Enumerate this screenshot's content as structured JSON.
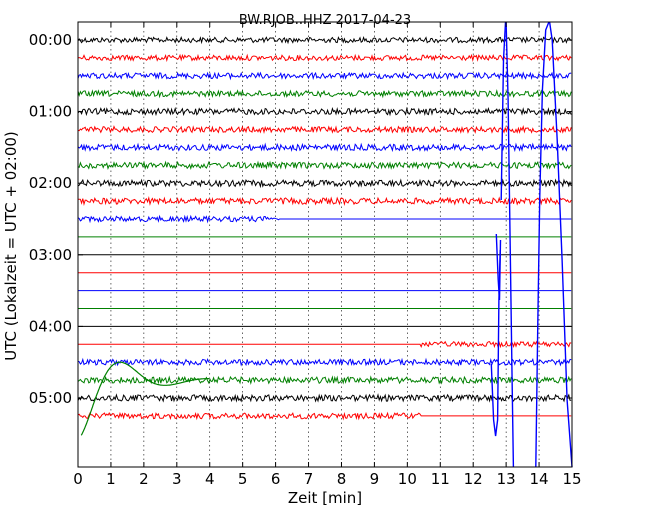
{
  "chart_data": {
    "type": "line",
    "title": "BW.RJOB..HHZ 2017-04-23",
    "xlabel": "Zeit  [min]",
    "ylabel": "UTC (Lokalzeit = UTC + 02:00)",
    "xlim": [
      0,
      15
    ],
    "x_ticks": [
      "0",
      "1",
      "2",
      "3",
      "4",
      "5",
      "6",
      "7",
      "8",
      "9",
      "10",
      "11",
      "12",
      "13",
      "14",
      "15"
    ],
    "y_ticks": [
      "00:00",
      "01:00",
      "02:00",
      "03:00",
      "04:00",
      "05:00"
    ],
    "grid": true,
    "colors": [
      "#000000",
      "#ff0000",
      "#0000ff",
      "#008000"
    ],
    "traces": [
      {
        "row": 0,
        "color": "#000000",
        "noise": 1.2,
        "flat_from": null,
        "flat_to": null
      },
      {
        "row": 1,
        "color": "#ff0000",
        "noise": 1.2,
        "flat_from": null,
        "flat_to": null
      },
      {
        "row": 2,
        "color": "#0000ff",
        "noise": 1.3,
        "flat_from": null,
        "flat_to": null
      },
      {
        "row": 3,
        "color": "#008000",
        "noise": 1.3,
        "flat_from": null,
        "flat_to": null
      },
      {
        "row": 4,
        "color": "#000000",
        "noise": 1.4,
        "flat_from": null,
        "flat_to": null
      },
      {
        "row": 5,
        "color": "#ff0000",
        "noise": 1.3,
        "flat_from": null,
        "flat_to": null
      },
      {
        "row": 6,
        "color": "#0000ff",
        "noise": 1.4,
        "flat_from": null,
        "flat_to": null
      },
      {
        "row": 7,
        "color": "#008000",
        "noise": 1.4,
        "flat_from": null,
        "flat_to": null
      },
      {
        "row": 8,
        "color": "#000000",
        "noise": 1.4,
        "flat_from": null,
        "flat_to": null
      },
      {
        "row": 9,
        "color": "#ff0000",
        "noise": 1.4,
        "flat_from": null,
        "flat_to": null
      },
      {
        "row": 10,
        "color": "#0000ff",
        "noise": 1.2,
        "flat_from": 6.1,
        "flat_to": 15
      },
      {
        "row": 11,
        "color": "#008000",
        "noise": 0.0,
        "flat_from": 0,
        "flat_to": 15
      },
      {
        "row": 12,
        "color": "#000000",
        "noise": 0.0,
        "flat_from": 0,
        "flat_to": 15
      },
      {
        "row": 13,
        "color": "#ff0000",
        "noise": 0.0,
        "flat_from": 0,
        "flat_to": 15
      },
      {
        "row": 14,
        "color": "#0000ff",
        "noise": 0.0,
        "flat_from": 0,
        "flat_to": 15
      },
      {
        "row": 15,
        "color": "#008000",
        "noise": 0.0,
        "flat_from": 0,
        "flat_to": 15
      },
      {
        "row": 16,
        "color": "#000000",
        "noise": 0.0,
        "flat_from": 0,
        "flat_to": 15
      },
      {
        "row": 17,
        "color": "#ff0000",
        "noise": 1.2,
        "flat_from": 0,
        "flat_to": 10.4
      },
      {
        "row": 18,
        "color": "#0000ff",
        "noise": 1.3,
        "flat_from": null,
        "flat_to": null
      },
      {
        "row": 19,
        "color": "#008000",
        "noise": 1.4,
        "flat_from": null,
        "flat_to": null
      },
      {
        "row": 20,
        "color": "#000000",
        "noise": 1.4,
        "flat_from": null,
        "flat_to": null
      },
      {
        "row": 21,
        "color": "#ff0000",
        "noise": 1.3,
        "flat_from": null,
        "flat_to": 10.4
      }
    ]
  }
}
